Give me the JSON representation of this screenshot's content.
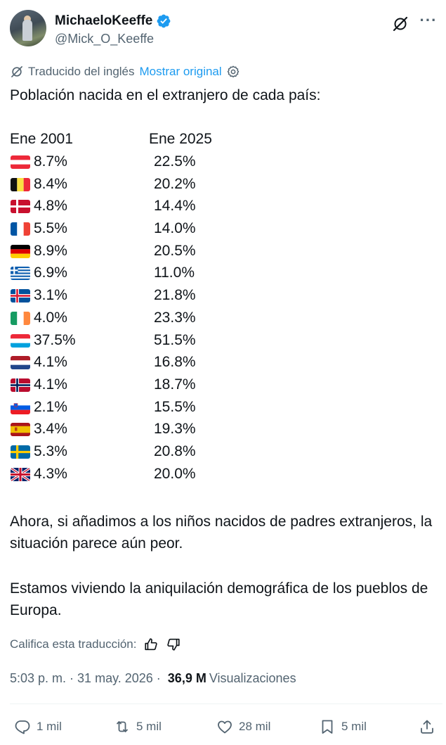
{
  "author": {
    "display_name": "MichaeloKeeffe",
    "handle": "@Mick_O_Keeffe",
    "verified": true
  },
  "header_icons": [
    "grok-icon",
    "more-icon"
  ],
  "translation": {
    "label": "Traducido del inglés",
    "show_original": "Mostrar original"
  },
  "post": {
    "intro": "Población nacida en el extranjero de cada país:",
    "col1_header": "Ene 2001",
    "col2_header": "Ene 2025",
    "rows": [
      {
        "flag": "austria-flag-icon",
        "v2001": "8.7%",
        "v2025": "22.5%"
      },
      {
        "flag": "belgium-flag-icon",
        "v2001": "8.4%",
        "v2025": "20.2%"
      },
      {
        "flag": "denmark-flag-icon",
        "v2001": "4.8%",
        "v2025": "14.4%"
      },
      {
        "flag": "france-flag-icon",
        "v2001": "5.5%",
        "v2025": "14.0%"
      },
      {
        "flag": "germany-flag-icon",
        "v2001": "8.9%",
        "v2025": "20.5%"
      },
      {
        "flag": "greece-flag-icon",
        "v2001": "6.9%",
        "v2025": "11.0%"
      },
      {
        "flag": "iceland-flag-icon",
        "v2001": "3.1%",
        "v2025": "21.8%"
      },
      {
        "flag": "ireland-flag-icon",
        "v2001": "4.0%",
        "v2025": "23.3%"
      },
      {
        "flag": "luxembourg-flag-icon",
        "v2001": "37.5%",
        "v2025": "51.5%"
      },
      {
        "flag": "netherlands-flag-icon",
        "v2001": "4.1%",
        "v2025": "16.8%"
      },
      {
        "flag": "norway-flag-icon",
        "v2001": "4.1%",
        "v2025": "18.7%"
      },
      {
        "flag": "slovenia-flag-icon",
        "v2001": "2.1%",
        "v2025": "15.5%"
      },
      {
        "flag": "spain-flag-icon",
        "v2001": "3.4%",
        "v2025": "19.3%"
      },
      {
        "flag": "sweden-flag-icon",
        "v2001": "5.3%",
        "v2025": "20.8%"
      },
      {
        "flag": "uk-flag-icon",
        "v2001": "4.3%",
        "v2025": "20.0%"
      }
    ],
    "paragraph2": "Ahora, si añadimos a los niños nacidos de padres extranjeros, la situación parece aún peor.",
    "paragraph3": "Estamos viviendo la aniquilación demográfica de los pueblos de Europa."
  },
  "rate_translation": {
    "label": "Califica esta traducción:"
  },
  "meta": {
    "time": "5:03 p. m.",
    "separator": "·",
    "date": "31 may. 2026",
    "views_count": "36,9 M",
    "views_label": "Visualizaciones"
  },
  "actions": {
    "replies": "1 mil",
    "reposts": "5 mil",
    "likes": "28 mil",
    "bookmarks": "5 mil"
  },
  "colors": {
    "text": "#0f1419",
    "secondary": "#536471",
    "link": "#1d9bf0",
    "verified": "#1d9bf0",
    "divider": "#eff3f4"
  }
}
